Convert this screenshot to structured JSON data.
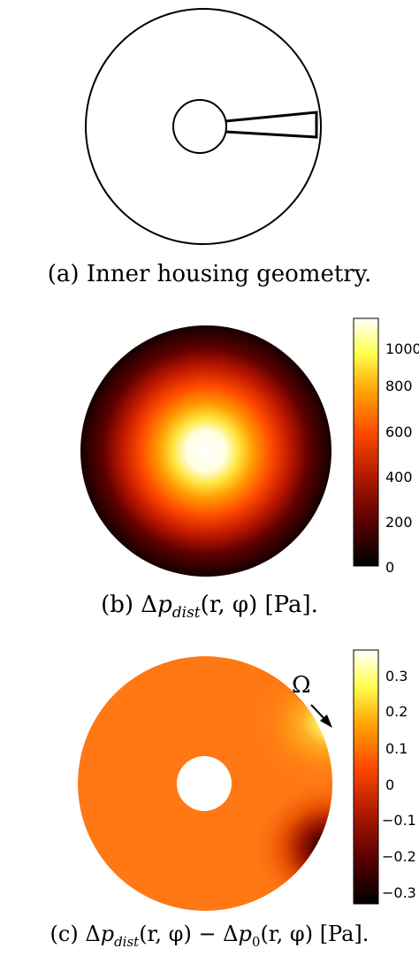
{
  "panel_a": {
    "caption": "(a) Inner housing geometry."
  },
  "panel_b": {
    "caption": "(b) Δp_dist(r, φ) [Pa].",
    "caption_parts": {
      "prefix": "(b) Δ",
      "p": "p",
      "sub": "dist",
      "args": "(r, φ) [Pa]."
    },
    "colorbar": {
      "ticks": [
        "1000",
        "800",
        "600",
        "400",
        "200",
        "0"
      ],
      "range": [
        0,
        1100
      ],
      "colors": [
        "#000000",
        "#5a0000",
        "#b01a00",
        "#ff4a00",
        "#ffa000",
        "#ffff50",
        "#ffffff"
      ]
    }
  },
  "panel_c": {
    "caption_parts": {
      "prefix": "(c) Δ",
      "p1": "p",
      "sub1": "dist",
      "mid": "(r, φ) − Δ",
      "p2": "p",
      "sub2": "0",
      "args": "(r, φ) [Pa]."
    },
    "omega_label": "Ω",
    "colorbar": {
      "ticks": [
        "0.3",
        "0.2",
        "0.1",
        "0",
        "−0.1",
        "−0.2",
        "−0.3"
      ],
      "range": [
        -0.35,
        0.35
      ],
      "colors": [
        "#000000",
        "#5a0000",
        "#b01a00",
        "#ff4a00",
        "#ffa000",
        "#ffff50",
        "#ffffff"
      ]
    }
  }
}
